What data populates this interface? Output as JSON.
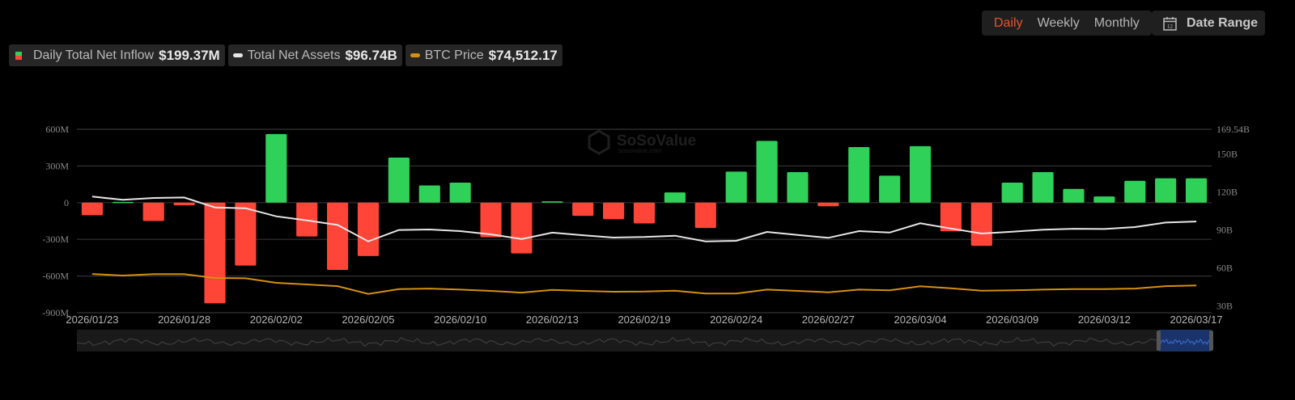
{
  "controls": {
    "periods": [
      {
        "label": "Daily",
        "active": true
      },
      {
        "label": "Weekly",
        "active": false
      },
      {
        "label": "Monthly",
        "active": false
      }
    ],
    "date_range_label": "Date Range",
    "date_range_icon": "calendar-icon",
    "calendar_day": "12"
  },
  "legend": [
    {
      "label": "Daily Total Net Inflow",
      "value": "$199.37M"
    },
    {
      "label": "Total Net Assets",
      "value": "$96.74B"
    },
    {
      "label": "BTC Price",
      "value": "$74,512.17"
    }
  ],
  "watermark": {
    "brand": "SoSoValue",
    "site": "sosovalue.com"
  },
  "colors": {
    "inflow_positive": "#2fd158",
    "inflow_negative": "#ff4438",
    "net_assets": "#e6e6e6",
    "btc_price": "#d4900f",
    "accent": "#e8532f",
    "slider_selected": "#1b3a7a"
  },
  "chart_data": {
    "type": "bar",
    "grid": true,
    "categories": [
      "2026/01/23",
      "2026/01/26",
      "2026/01/27",
      "2026/01/28",
      "2026/01/29",
      "2026/01/30",
      "2026/02/02",
      "2026/02/03",
      "2026/02/04",
      "2026/02/05",
      "2026/02/06",
      "2026/02/09",
      "2026/02/10",
      "2026/02/11",
      "2026/02/12",
      "2026/02/13",
      "2026/02/17",
      "2026/02/18",
      "2026/02/19",
      "2026/02/20",
      "2026/02/23",
      "2026/02/24",
      "2026/02/25",
      "2026/02/26",
      "2026/02/27",
      "2026/03/02",
      "2026/03/03",
      "2026/03/04",
      "2026/03/05",
      "2026/03/06",
      "2026/03/09",
      "2026/03/10",
      "2026/03/11",
      "2026/03/12",
      "2026/03/13",
      "2026/03/16",
      "2026/03/17"
    ],
    "x_tick_labels": [
      "2026/01/23",
      "2026/01/28",
      "2026/02/02",
      "2026/02/05",
      "2026/02/10",
      "2026/02/13",
      "2026/02/19",
      "2026/02/24",
      "2026/02/27",
      "2026/03/04",
      "2026/03/09",
      "2026/03/12",
      "2026/03/17"
    ],
    "y_left": {
      "ticks": [
        "600M",
        "300M",
        "0",
        "-300M",
        "-600M",
        "-900M"
      ],
      "tick_values": [
        600,
        300,
        0,
        -300,
        -600,
        -900
      ],
      "range": [
        -900,
        600
      ],
      "unit": "M"
    },
    "y_right": {
      "ticks": [
        "169.54B",
        "150B",
        "120B",
        "90B",
        "60B",
        "30B"
      ],
      "tick_values": [
        169.54,
        150,
        120,
        90,
        60,
        30
      ],
      "range": [
        24.67,
        169.54
      ],
      "unit": "B"
    },
    "btc_axis_range": [
      36300,
      294000
    ],
    "series": [
      {
        "name": "Daily Total Net Inflow",
        "type": "bar",
        "axis": "left",
        "values": [
          -103,
          6,
          -150,
          -22,
          -823,
          -514,
          561,
          -276,
          -550,
          -437,
          369,
          141,
          164,
          -283,
          -415,
          11,
          -108,
          -135,
          -170,
          84,
          -207,
          254,
          505,
          250,
          -29,
          455,
          221,
          462,
          -234,
          -353,
          164,
          250,
          113,
          51,
          179,
          199,
          199.37
        ]
      },
      {
        "name": "Total Net Assets",
        "type": "line",
        "axis": "right",
        "values": [
          116.4,
          113.8,
          115.3,
          115.7,
          107.8,
          107.2,
          100.8,
          97.6,
          94.0,
          81.0,
          90.0,
          90.4,
          89.1,
          86.6,
          82.9,
          87.9,
          85.9,
          84.0,
          84.5,
          85.5,
          81.0,
          81.5,
          88.5,
          86.1,
          83.8,
          89.1,
          88.0,
          95.3,
          91.2,
          87.2,
          88.7,
          90.2,
          91.0,
          90.8,
          92.3,
          95.9,
          96.74
        ]
      },
      {
        "name": "BTC Price",
        "type": "line",
        "axis": "hidden",
        "values": [
          90700,
          88500,
          90400,
          90400,
          85100,
          84700,
          78300,
          76000,
          73700,
          62700,
          69500,
          70300,
          68800,
          66900,
          64600,
          68400,
          66900,
          65800,
          66100,
          67300,
          63200,
          63200,
          68800,
          66900,
          65000,
          68800,
          67700,
          73400,
          70700,
          67300,
          67700,
          68800,
          69500,
          69500,
          70300,
          73700,
          74512.17
        ]
      }
    ],
    "data_zoom": {
      "selected_start": "2026/01/23",
      "selected_end": "2026/03/17"
    }
  }
}
